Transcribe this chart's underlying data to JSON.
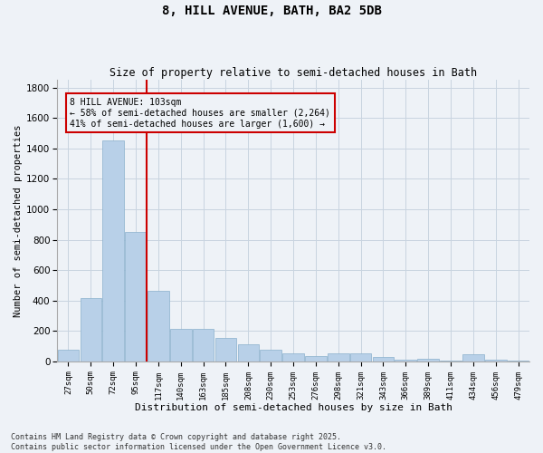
{
  "title": "8, HILL AVENUE, BATH, BA2 5DB",
  "subtitle": "Size of property relative to semi-detached houses in Bath",
  "xlabel": "Distribution of semi-detached houses by size in Bath",
  "ylabel": "Number of semi-detached properties",
  "bar_color": "#b8d0e8",
  "bar_edge_color": "#8ab0cc",
  "grid_color": "#c8d4e0",
  "background_color": "#eef2f7",
  "vline_color": "#cc0000",
  "annotation_box_color": "#cc0000",
  "categories": [
    "27sqm",
    "50sqm",
    "72sqm",
    "95sqm",
    "117sqm",
    "140sqm",
    "163sqm",
    "185sqm",
    "208sqm",
    "230sqm",
    "253sqm",
    "276sqm",
    "298sqm",
    "321sqm",
    "343sqm",
    "366sqm",
    "389sqm",
    "411sqm",
    "434sqm",
    "456sqm",
    "479sqm"
  ],
  "values": [
    75,
    415,
    1450,
    850,
    465,
    215,
    215,
    155,
    110,
    75,
    50,
    35,
    50,
    55,
    30,
    12,
    18,
    8,
    45,
    12,
    3
  ],
  "vline_x": 3.5,
  "annotation_text": "8 HILL AVENUE: 103sqm\n← 58% of semi-detached houses are smaller (2,264)\n41% of semi-detached houses are larger (1,600) →",
  "footer_text": "Contains HM Land Registry data © Crown copyright and database right 2025.\nContains public sector information licensed under the Open Government Licence v3.0.",
  "ylim": [
    0,
    1850
  ],
  "yticks": [
    0,
    200,
    400,
    600,
    800,
    1000,
    1200,
    1400,
    1600,
    1800
  ]
}
